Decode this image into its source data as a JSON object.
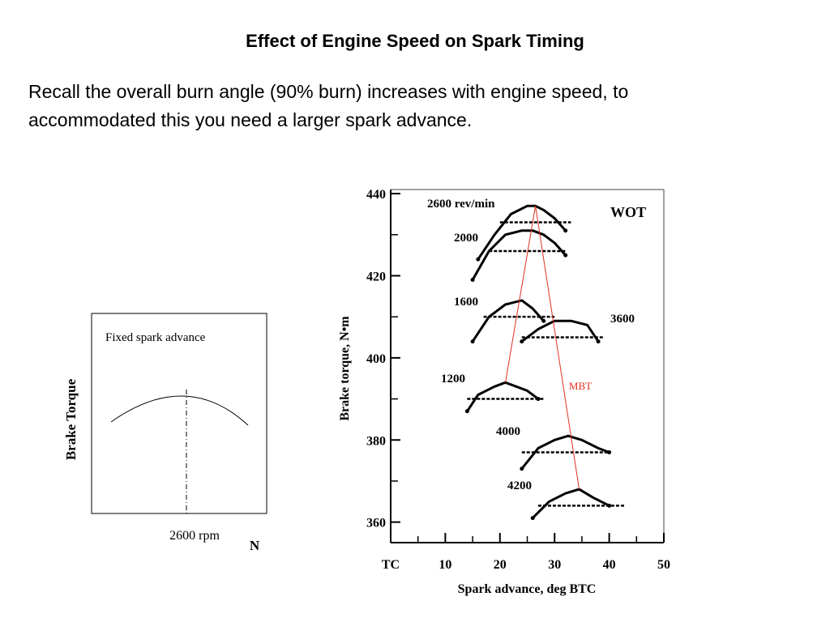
{
  "slide": {
    "title": "Effect of Engine Speed on Spark Timing",
    "body_lines": [
      "Recall the overall burn angle (90% burn) increases with engine speed, to",
      "accommodated this you need a larger spark advance."
    ]
  },
  "chart_data": [
    {
      "type": "line",
      "title": "",
      "annotation": "Fixed spark advance",
      "xlabel": "N",
      "ylabel": "Brake Torque",
      "x_tick_label": "2600 rpm",
      "marker": "dash-dot vertical line at 2600 rpm (peak)",
      "grid": false,
      "colors": {
        "line": "#000000"
      }
    },
    {
      "type": "line",
      "title": "",
      "annotation": "WOT",
      "mbt_label": "MBT",
      "xlabel": "Spark advance, deg BTC",
      "ylabel": "Brake torque, N•m",
      "x_ticks": [
        "TC",
        "10",
        "20",
        "30",
        "40",
        "50"
      ],
      "y_ticks": [
        "360",
        "380",
        "400",
        "420",
        "440"
      ],
      "xlim": [
        0,
        50
      ],
      "ylim": [
        355,
        441
      ],
      "grid": false,
      "colors": {
        "mbt_line": "#e0301e",
        "series": "#000000"
      },
      "series": [
        {
          "name": "2600 rev/min",
          "x": [
            16,
            19,
            22,
            25,
            26.5,
            28,
            30,
            32
          ],
          "y": [
            424,
            430,
            435,
            437,
            437,
            436,
            434,
            431
          ],
          "flat": 433,
          "flat_x": [
            20,
            33
          ]
        },
        {
          "name": "2000",
          "x": [
            15,
            18,
            21,
            24,
            26,
            28,
            30,
            32
          ],
          "y": [
            419,
            426,
            430,
            431,
            431,
            430,
            428,
            425
          ],
          "flat": 426,
          "flat_x": [
            18,
            32
          ]
        },
        {
          "name": "1600",
          "x": [
            15,
            18,
            21,
            24,
            26,
            28
          ],
          "y": [
            404,
            410,
            413,
            414,
            412,
            409
          ],
          "flat": 410,
          "flat_x": [
            17,
            30
          ]
        },
        {
          "name": "3600",
          "x": [
            24,
            27,
            30,
            33,
            36,
            38
          ],
          "y": [
            404,
            407,
            409,
            409,
            408,
            404
          ],
          "flat": 405,
          "flat_x": [
            24,
            39
          ]
        },
        {
          "name": "1200",
          "x": [
            14,
            16,
            19,
            21,
            23,
            25,
            27
          ],
          "y": [
            387,
            391,
            393,
            394,
            393,
            392,
            390
          ],
          "flat": 390,
          "flat_x": [
            14,
            28
          ]
        },
        {
          "name": "4000",
          "x": [
            24,
            27,
            30,
            32.5,
            35,
            38,
            40
          ],
          "y": [
            373,
            378,
            380,
            381,
            380,
            378,
            377
          ],
          "flat": 377,
          "flat_x": [
            24,
            40
          ]
        },
        {
          "name": "4200",
          "x": [
            26,
            29,
            32,
            34.5,
            37,
            40
          ],
          "y": [
            361,
            365,
            367,
            368,
            366,
            364
          ],
          "flat": 364,
          "flat_x": [
            27,
            43
          ]
        }
      ],
      "mbt_points": {
        "x": [
          21,
          26.5,
          34.5
        ],
        "y": [
          394,
          437,
          368
        ]
      }
    }
  ]
}
